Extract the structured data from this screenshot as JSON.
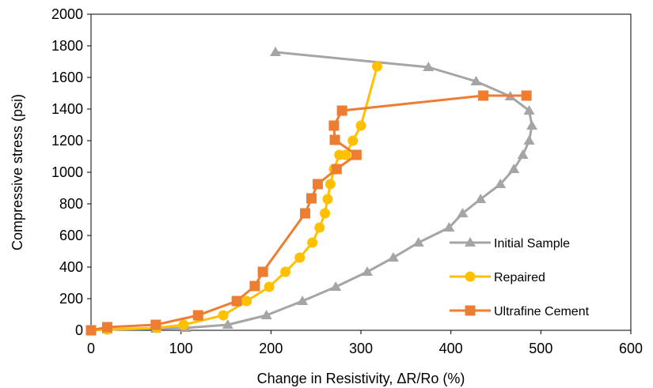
{
  "chart_data": {
    "type": "line",
    "title": "",
    "xlabel": "Change in Resistivity, ΔR/Ro (%)",
    "ylabel": "Compressive stress (psi)",
    "xlim": [
      0,
      600
    ],
    "ylim": [
      0,
      2000
    ],
    "xticks": [
      0,
      100,
      200,
      300,
      400,
      500,
      600
    ],
    "yticks": [
      0,
      200,
      400,
      600,
      800,
      1000,
      1200,
      1400,
      1600,
      1800,
      2000
    ],
    "grid": false,
    "legend_position": "bottom-right",
    "series": [
      {
        "name": "Initial Sample",
        "color": "#A5A5A5",
        "marker": "triangle",
        "x": [
          0,
          18,
          72,
          105,
          152,
          195,
          235,
          272,
          307,
          336,
          364,
          398,
          413,
          433,
          455,
          470,
          480,
          487,
          490,
          487,
          466,
          428,
          375,
          205
        ],
        "y": [
          0,
          5,
          10,
          15,
          35,
          95,
          185,
          275,
          370,
          460,
          555,
          650,
          740,
          830,
          925,
          1020,
          1110,
          1200,
          1295,
          1390,
          1480,
          1575,
          1665,
          1760
        ]
      },
      {
        "name": "Repaired",
        "color": "#FFC000",
        "marker": "circle",
        "x": [
          0,
          18,
          73,
          103,
          147,
          173,
          198,
          216,
          232,
          246,
          254,
          260,
          263,
          266,
          270,
          276,
          283,
          291,
          300,
          318
        ],
        "y": [
          0,
          5,
          15,
          35,
          95,
          185,
          275,
          370,
          460,
          555,
          650,
          740,
          830,
          925,
          1020,
          1110,
          1110,
          1200,
          1295,
          1670
        ]
      },
      {
        "name": "Ultrafine Cement",
        "color": "#ED7D31",
        "marker": "square",
        "x": [
          0,
          18,
          72,
          119,
          162,
          182,
          191,
          238,
          245,
          252,
          273,
          295,
          271,
          270,
          279,
          436,
          484
        ],
        "y": [
          0,
          20,
          35,
          95,
          185,
          280,
          370,
          740,
          835,
          925,
          1020,
          1110,
          1205,
          1295,
          1390,
          1485,
          1485
        ]
      }
    ]
  }
}
